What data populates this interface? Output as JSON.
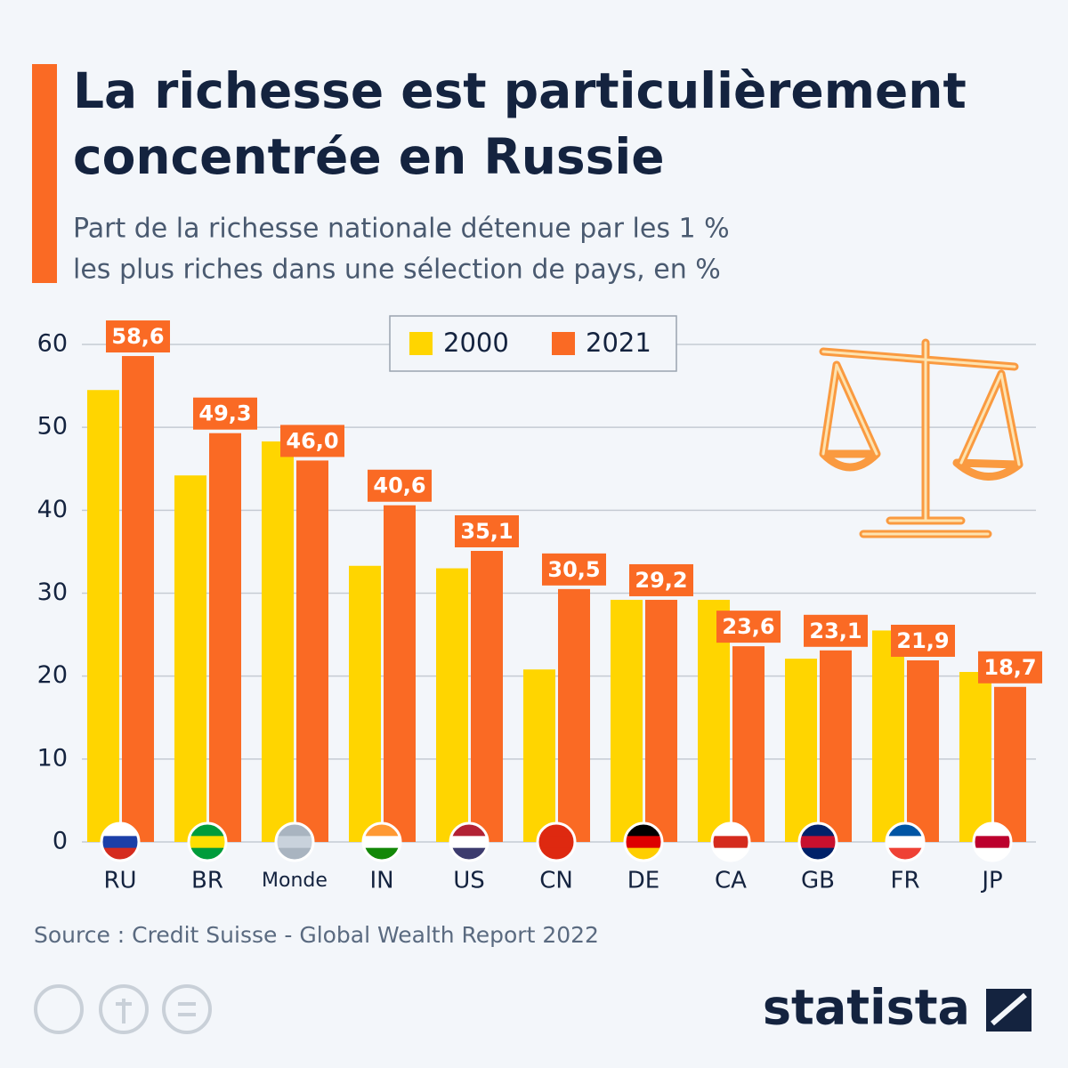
{
  "chart_data": {
    "type": "bar",
    "title": [
      "La richesse est particulièrement",
      "concentrée en Russie"
    ],
    "subtitle": [
      "Part de la richesse nationale détenue par les 1 %",
      "les plus riches dans une sélection de pays, en %"
    ],
    "categories": [
      "RU",
      "BR",
      "Monde",
      "IN",
      "US",
      "CN",
      "DE",
      "CA",
      "GB",
      "FR",
      "JP"
    ],
    "series": [
      {
        "name": "2000",
        "color": "#ffd500",
        "values": [
          54.5,
          44.2,
          48.3,
          33.3,
          33.0,
          20.8,
          29.2,
          29.2,
          22.1,
          25.5,
          20.5
        ]
      },
      {
        "name": "2021",
        "color": "#fa6a24",
        "values": [
          58.6,
          49.3,
          46.0,
          40.6,
          35.1,
          30.5,
          29.2,
          23.6,
          23.1,
          21.9,
          18.7
        ],
        "value_labels": [
          "58,6",
          "49,3",
          "46,0",
          "40,6",
          "35,1",
          "30,5",
          "29,2",
          "23,6",
          "23,1",
          "21,9",
          "18,7"
        ]
      }
    ],
    "ylim": [
      0,
      60
    ],
    "yticks": [
      0,
      10,
      20,
      30,
      40,
      50,
      60
    ],
    "grid": true,
    "legend": "top",
    "source": "Source : Credit Suisse - Global Wealth Report 2022",
    "brand": "statista"
  }
}
